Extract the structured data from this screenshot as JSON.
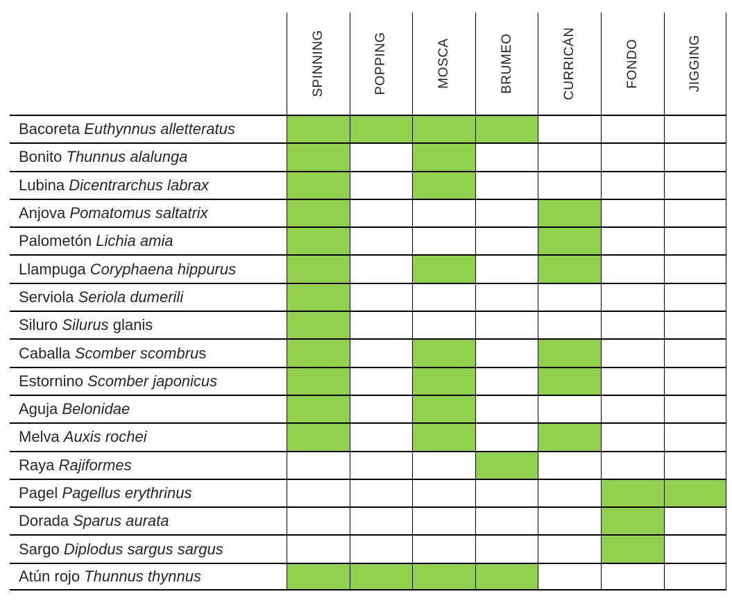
{
  "chart_data": {
    "type": "heatmap",
    "title": "",
    "columns": [
      "SPINNING",
      "POPPING",
      "MOSCA",
      "BRUMEO",
      "CURRICÁN",
      "FONDO",
      "JIGGING"
    ],
    "rows": [
      "Bacoreta Euthynnus alletteratus",
      "Bonito Thunnus alalunga",
      "Lubina Dicentrarchus labrax",
      "Anjova Pomatomus saltatrix",
      "Palometón Lichia amia",
      "Llampuga Coryphaena hippurus",
      "Serviola Seriola dumerili",
      "Siluro Silurus glanis",
      "Caballa Scomber scombrus",
      "Estornino Scomber japonicus",
      "Aguja Belonidae",
      "Melva Auxis rochei",
      "Raya Rajiformes",
      "Pagel Pagellus erythrinus",
      "Dorada Sparus aurata",
      "Sargo Diplodus sargus sargus",
      "Atún rojo Thunnus thynnus"
    ],
    "matrix": [
      [
        1,
        1,
        1,
        1,
        0,
        0,
        0
      ],
      [
        1,
        0,
        1,
        0,
        0,
        0,
        0
      ],
      [
        1,
        0,
        1,
        0,
        0,
        0,
        0
      ],
      [
        1,
        0,
        0,
        0,
        1,
        0,
        0
      ],
      [
        1,
        0,
        0,
        0,
        1,
        0,
        0
      ],
      [
        1,
        0,
        1,
        0,
        1,
        0,
        0
      ],
      [
        1,
        0,
        0,
        0,
        0,
        0,
        0
      ],
      [
        1,
        0,
        0,
        0,
        0,
        0,
        0
      ],
      [
        1,
        0,
        1,
        0,
        1,
        0,
        0
      ],
      [
        1,
        0,
        1,
        0,
        1,
        0,
        0
      ],
      [
        1,
        0,
        1,
        0,
        0,
        0,
        0
      ],
      [
        1,
        0,
        1,
        0,
        1,
        0,
        0
      ],
      [
        0,
        0,
        0,
        1,
        0,
        0,
        0
      ],
      [
        0,
        0,
        0,
        0,
        0,
        1,
        1
      ],
      [
        0,
        0,
        0,
        0,
        0,
        1,
        0
      ],
      [
        0,
        0,
        0,
        0,
        0,
        1,
        0
      ],
      [
        1,
        1,
        1,
        1,
        0,
        0,
        0
      ]
    ],
    "value_meaning": {
      "1": "green filled cell (technique applies to species)",
      "0": "empty white cell"
    },
    "active_cell_color": "#92d050",
    "grid": true,
    "legend": false
  },
  "table": {
    "columns": [
      "SPINNING",
      "POPPING",
      "MOSCA",
      "BRUMEO",
      "CURRICÁN",
      "FONDO",
      "JIGGING"
    ],
    "rows": [
      {
        "common": "Bacoreta",
        "scientific": "Euthynnus alletteratus",
        "suffix": "",
        "cells": [
          1,
          1,
          1,
          1,
          0,
          0,
          0
        ]
      },
      {
        "common": "Bonito",
        "scientific": "Thunnus alalunga",
        "suffix": "",
        "cells": [
          1,
          0,
          1,
          0,
          0,
          0,
          0
        ]
      },
      {
        "common": "Lubina",
        "scientific": "Dicentrarchus labrax",
        "suffix": "",
        "cells": [
          1,
          0,
          1,
          0,
          0,
          0,
          0
        ]
      },
      {
        "common": "Anjova",
        "scientific": "Pomatomus saltatrix",
        "suffix": "",
        "cells": [
          1,
          0,
          0,
          0,
          1,
          0,
          0
        ]
      },
      {
        "common": "Palometón",
        "scientific": "Lichia amia",
        "suffix": "",
        "cells": [
          1,
          0,
          0,
          0,
          1,
          0,
          0
        ]
      },
      {
        "common": "Llampuga",
        "scientific": "Coryphaena hippurus",
        "suffix": "",
        "cells": [
          1,
          0,
          1,
          0,
          1,
          0,
          0
        ]
      },
      {
        "common": "Serviola",
        "scientific": "Seriola dumerili",
        "suffix": "",
        "cells": [
          1,
          0,
          0,
          0,
          0,
          0,
          0
        ]
      },
      {
        "common": "Siluro",
        "scientific": "Silurus",
        "suffix": " glanis",
        "cells": [
          1,
          0,
          0,
          0,
          0,
          0,
          0
        ]
      },
      {
        "common": "Caballa",
        "scientific": "Scomber scombru",
        "suffix": "s",
        "cells": [
          1,
          0,
          1,
          0,
          1,
          0,
          0
        ]
      },
      {
        "common": "Estornino",
        "scientific": "Scomber japonicus",
        "suffix": "",
        "cells": [
          1,
          0,
          1,
          0,
          1,
          0,
          0
        ]
      },
      {
        "common": "Aguja",
        "scientific": "Belonidae",
        "suffix": "",
        "cells": [
          1,
          0,
          1,
          0,
          0,
          0,
          0
        ]
      },
      {
        "common": "Melva",
        "scientific": "Auxis rochei",
        "suffix": "",
        "cells": [
          1,
          0,
          1,
          0,
          1,
          0,
          0
        ]
      },
      {
        "common": "Raya",
        "scientific": "Rajiformes",
        "suffix": "",
        "cells": [
          0,
          0,
          0,
          1,
          0,
          0,
          0
        ]
      },
      {
        "common": "Pagel",
        "scientific": "Pagellus erythrinus",
        "suffix": "",
        "cells": [
          0,
          0,
          0,
          0,
          0,
          1,
          1
        ]
      },
      {
        "common": "Dorada",
        "scientific": "Sparus aurata",
        "suffix": "",
        "cells": [
          0,
          0,
          0,
          0,
          0,
          1,
          0
        ]
      },
      {
        "common": "Sargo",
        "scientific": "Diplodus sargus sargus",
        "suffix": "",
        "cells": [
          0,
          0,
          0,
          0,
          0,
          1,
          0
        ]
      },
      {
        "common": "Atún rojo",
        "scientific": "Thunnus thynnus",
        "suffix": "",
        "cells": [
          1,
          1,
          1,
          1,
          0,
          0,
          0
        ]
      }
    ],
    "colors": {
      "active": "#92d050",
      "border": "#000000",
      "text": "#262626",
      "background": "#ffffff"
    }
  }
}
